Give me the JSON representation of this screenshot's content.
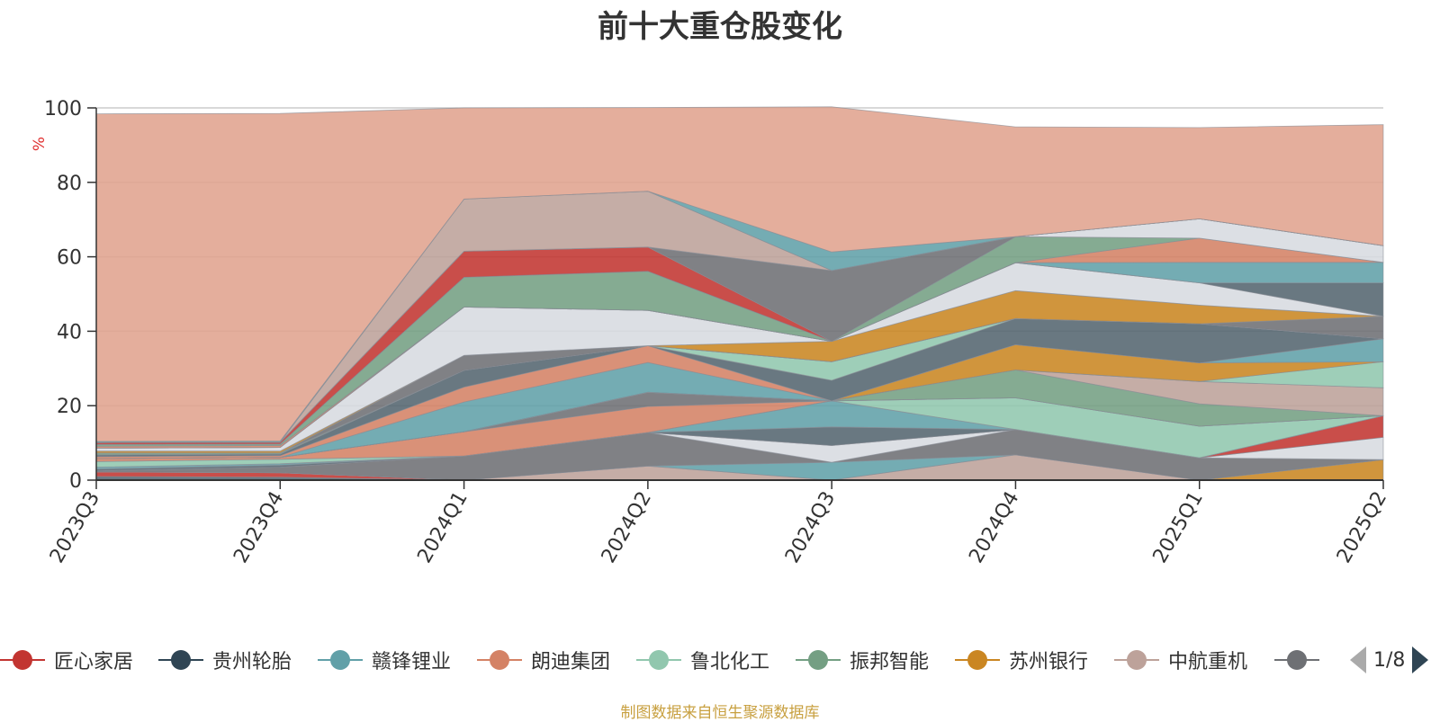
{
  "title": "前十大重仓股变化",
  "source_note": "制图数据来自恒生聚源数据库",
  "legend": {
    "items": [
      {
        "label": "匠心家居",
        "color": "#c23531"
      },
      {
        "label": "贵州轮胎",
        "color": "#2f4554"
      },
      {
        "label": "赣锋锂业",
        "color": "#61a0a8"
      },
      {
        "label": "朗迪集团",
        "color": "#d48265"
      },
      {
        "label": "鲁北化工",
        "color": "#91c7ae"
      },
      {
        "label": "振邦智能",
        "color": "#749f83"
      },
      {
        "label": "苏州银行",
        "color": "#ca8622"
      },
      {
        "label": "中航重机",
        "color": "#bda29a"
      },
      {
        "label": "",
        "color": "#6e7074"
      }
    ],
    "page": "1/8"
  },
  "chart_data": {
    "type": "area",
    "title": "前十大重仓股变化",
    "ylabel": "%",
    "ylim": [
      0,
      100
    ],
    "yticks": [
      "0",
      "20",
      "40",
      "60",
      "80",
      "100"
    ],
    "categories": [
      "2023Q3",
      "2023Q4",
      "2024Q1",
      "2024Q2",
      "2024Q3",
      "2024Q4",
      "2025Q1",
      "2025Q2"
    ],
    "stacked": true,
    "legend_position": "bottom",
    "grid": true,
    "series": [
      {
        "color": "#546570",
        "values": [
          1.0,
          0.8,
          0,
          0,
          0,
          0,
          0,
          0
        ]
      },
      {
        "color": "#c23531",
        "values": [
          1.2,
          1.2,
          0,
          0,
          0,
          0,
          0,
          0
        ]
      },
      {
        "color": "#ca8622",
        "values": [
          0,
          0,
          0,
          0,
          0,
          0,
          0,
          5.5
        ]
      },
      {
        "color": "#bda29a",
        "values": [
          0,
          0,
          0,
          3.8,
          0,
          6.8,
          0,
          0
        ]
      },
      {
        "color": "#61a0a8",
        "values": [
          0,
          0,
          0,
          0,
          4.8,
          0,
          0,
          0
        ]
      },
      {
        "color": "#6e7074",
        "values": [
          0.3,
          1.5,
          6.5,
          9.0,
          0,
          6.8,
          6.0,
          0
        ]
      },
      {
        "color": "#d7dbe0",
        "values": [
          0,
          0,
          0,
          0,
          4.5,
          0,
          0,
          6.0
        ]
      },
      {
        "color": "#c23531",
        "values": [
          0,
          0,
          0,
          0,
          0,
          0,
          0,
          5.8
        ]
      },
      {
        "color": "#546570",
        "values": [
          0.5,
          0.5,
          0,
          0,
          5.0,
          0,
          0,
          0
        ]
      },
      {
        "color": "#61a0a8",
        "values": [
          0.5,
          0.4,
          0,
          0,
          7.0,
          0,
          0,
          0
        ]
      },
      {
        "color": "#91c7ae",
        "values": [
          1.5,
          1.2,
          0,
          0,
          0,
          8.5,
          8.5,
          0
        ]
      },
      {
        "color": "#d48265",
        "values": [
          0.8,
          0.5,
          6.5,
          7.0,
          0,
          0,
          0,
          0
        ]
      },
      {
        "color": "#6e7074",
        "values": [
          0,
          0,
          0,
          3.8,
          0,
          0,
          0,
          0
        ]
      },
      {
        "color": "#749f83",
        "values": [
          0,
          0,
          0,
          0,
          0,
          7.5,
          6.0,
          0
        ]
      },
      {
        "color": "#bda29a",
        "values": [
          0,
          0,
          0,
          0,
          0,
          0,
          6.0,
          7.5
        ]
      },
      {
        "color": "#91c7ae",
        "values": [
          0,
          0,
          0,
          0,
          0,
          0,
          0,
          7.0
        ]
      },
      {
        "color": "#ca8622",
        "values": [
          0,
          0,
          0,
          0,
          0,
          6.8,
          5.0,
          0
        ]
      },
      {
        "color": "#61a0a8",
        "values": [
          0,
          0,
          8.0,
          8.0,
          0,
          0,
          0,
          6.2
        ]
      },
      {
        "color": "#d48265",
        "values": [
          0.5,
          0.5,
          4.0,
          4.5,
          0,
          0,
          0,
          0
        ]
      },
      {
        "color": "#546570",
        "values": [
          0.5,
          0.4,
          4.5,
          0,
          5.5,
          7.0,
          10.5,
          0
        ]
      },
      {
        "color": "#91c7ae",
        "values": [
          0,
          0,
          0,
          0,
          5.0,
          0,
          0,
          0
        ]
      },
      {
        "color": "#749f83",
        "values": [
          0.5,
          0.3,
          0,
          0,
          0,
          0,
          0,
          0
        ]
      },
      {
        "color": "#6e7074",
        "values": [
          0,
          0,
          4.0,
          0,
          0,
          0,
          0,
          6.0
        ]
      },
      {
        "color": "#ca8622",
        "values": [
          0.5,
          0.5,
          0,
          0,
          5.5,
          7.5,
          5.0,
          0
        ]
      },
      {
        "color": "#d7dbe0",
        "values": [
          0.8,
          1.0,
          13.0,
          9.5,
          0,
          7.5,
          6.0,
          0
        ]
      },
      {
        "color": "#546570",
        "values": [
          0,
          0,
          0,
          0,
          0,
          0,
          0,
          9.0
        ]
      },
      {
        "color": "#61a0a8",
        "values": [
          0,
          0,
          0,
          0,
          0,
          0,
          5.5,
          5.5
        ]
      },
      {
        "color": "#d48265",
        "values": [
          0.5,
          0.5,
          0,
          0,
          0,
          0,
          6.5,
          0
        ]
      },
      {
        "color": "#749f83",
        "values": [
          0.5,
          0.4,
          8.0,
          10.5,
          0,
          7.0,
          0,
          0
        ]
      },
      {
        "color": "#d7dbe0",
        "values": [
          0,
          0,
          0,
          0,
          0,
          0,
          5.2,
          4.5
        ]
      },
      {
        "color": "#c23531",
        "values": [
          0.5,
          0.5,
          7.0,
          6.5,
          0,
          0,
          0,
          0
        ]
      },
      {
        "color": "#6e7074",
        "values": [
          0,
          0,
          0,
          0,
          19.0,
          0,
          0,
          0
        ]
      },
      {
        "color": "#bda29a",
        "values": [
          0,
          0,
          14.0,
          15.0,
          0,
          0,
          0,
          0
        ]
      },
      {
        "color": "#61a0a8",
        "values": [
          0.3,
          0.3,
          0,
          0,
          5.0,
          0,
          0,
          0
        ]
      },
      {
        "color": "#e0a38e",
        "values": [
          88.0,
          88.0,
          24.5,
          22.5,
          39.0,
          29.5,
          24.5,
          32.5
        ]
      }
    ]
  }
}
